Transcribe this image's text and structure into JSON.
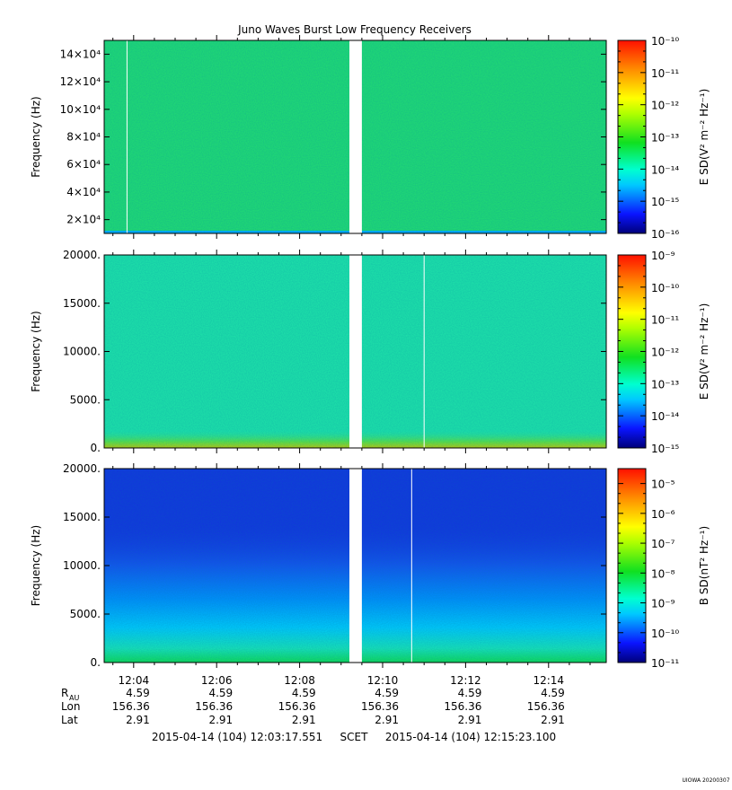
{
  "title": "Juno Waves Burst Low Frequency Receivers",
  "chart_data": [
    {
      "type": "heatmap",
      "ylabel": "Frequency (Hz)",
      "colorbar_label": "E SD(V² m⁻² Hz⁻¹)",
      "yticks": [
        {
          "value": 20000,
          "label": "2×10⁴"
        },
        {
          "value": 40000,
          "label": "4×10⁴"
        },
        {
          "value": 60000,
          "label": "6×10⁴"
        },
        {
          "value": 80000,
          "label": "8×10⁴"
        },
        {
          "value": 100000,
          "label": "10×10⁴"
        },
        {
          "value": 120000,
          "label": "12×10⁴"
        },
        {
          "value": 140000,
          "label": "14×10⁴"
        }
      ],
      "ylim": [
        10000,
        150000
      ],
      "colorbar_ticks": [
        "10⁻¹⁰",
        "10⁻¹¹",
        "10⁻¹²",
        "10⁻¹³",
        "10⁻¹⁴",
        "10⁻¹⁵",
        "10⁻¹⁶"
      ],
      "colorbar_range_log10": [
        -16,
        -10
      ],
      "background_color": "#22e070"
    },
    {
      "type": "heatmap",
      "ylabel": "Frequency (Hz)",
      "colorbar_label": "E SD(V² m⁻² Hz⁻¹)",
      "yticks": [
        {
          "value": 0,
          "label": "0."
        },
        {
          "value": 5000,
          "label": "5000."
        },
        {
          "value": 10000,
          "label": "10000."
        },
        {
          "value": 15000,
          "label": "15000."
        },
        {
          "value": 20000,
          "label": "20000."
        }
      ],
      "ylim": [
        0,
        20000
      ],
      "colorbar_ticks": [
        "10⁻⁹",
        "10⁻¹⁰",
        "10⁻¹¹",
        "10⁻¹²",
        "10⁻¹³",
        "10⁻¹⁴",
        "10⁻¹⁵"
      ],
      "colorbar_range_log10": [
        -15,
        -9
      ],
      "background_color": "#1fe8a8"
    },
    {
      "type": "heatmap",
      "ylabel": "Frequency (Hz)",
      "colorbar_label": "B SD(nT² Hz⁻¹)",
      "yticks": [
        {
          "value": 0,
          "label": "0."
        },
        {
          "value": 5000,
          "label": "5000."
        },
        {
          "value": 10000,
          "label": "10000."
        },
        {
          "value": 15000,
          "label": "15000."
        },
        {
          "value": 20000,
          "label": "20000."
        }
      ],
      "ylim": [
        0,
        20000
      ],
      "colorbar_ticks": [
        "10⁻⁵",
        "10⁻⁶",
        "10⁻⁷",
        "10⁻⁸",
        "10⁻⁹",
        "10⁻¹⁰",
        "10⁻¹¹"
      ],
      "colorbar_range_log10": [
        -11,
        -4.5
      ],
      "background_color": "#1230e0"
    }
  ],
  "time_axis": {
    "ticks": [
      "12:04",
      "12:06",
      "12:08",
      "12:10",
      "12:12",
      "12:14"
    ],
    "tick_minutes": [
      4,
      6,
      8,
      10,
      12,
      14
    ],
    "range_minutes": [
      3.29,
      15.39
    ],
    "data_gap_minutes": [
      9.2,
      9.5
    ]
  },
  "ephemeris": {
    "rows": [
      {
        "label": "R",
        "sub": "AU",
        "values": [
          "4.59",
          "4.59",
          "4.59",
          "4.59",
          "4.59",
          "4.59"
        ]
      },
      {
        "label": "Lon",
        "sub": "",
        "values": [
          "156.36",
          "156.36",
          "156.36",
          "156.36",
          "156.36",
          "156.36"
        ]
      },
      {
        "label": "Lat",
        "sub": "",
        "values": [
          "2.91",
          "2.91",
          "2.91",
          "2.91",
          "2.91",
          "2.91"
        ]
      }
    ]
  },
  "footer": {
    "start": "2015-04-14 (104) 12:03:17.551",
    "scet": "SCET",
    "end": "2015-04-14 (104) 12:15:23.100"
  },
  "credit": "UIOWA 20200307"
}
